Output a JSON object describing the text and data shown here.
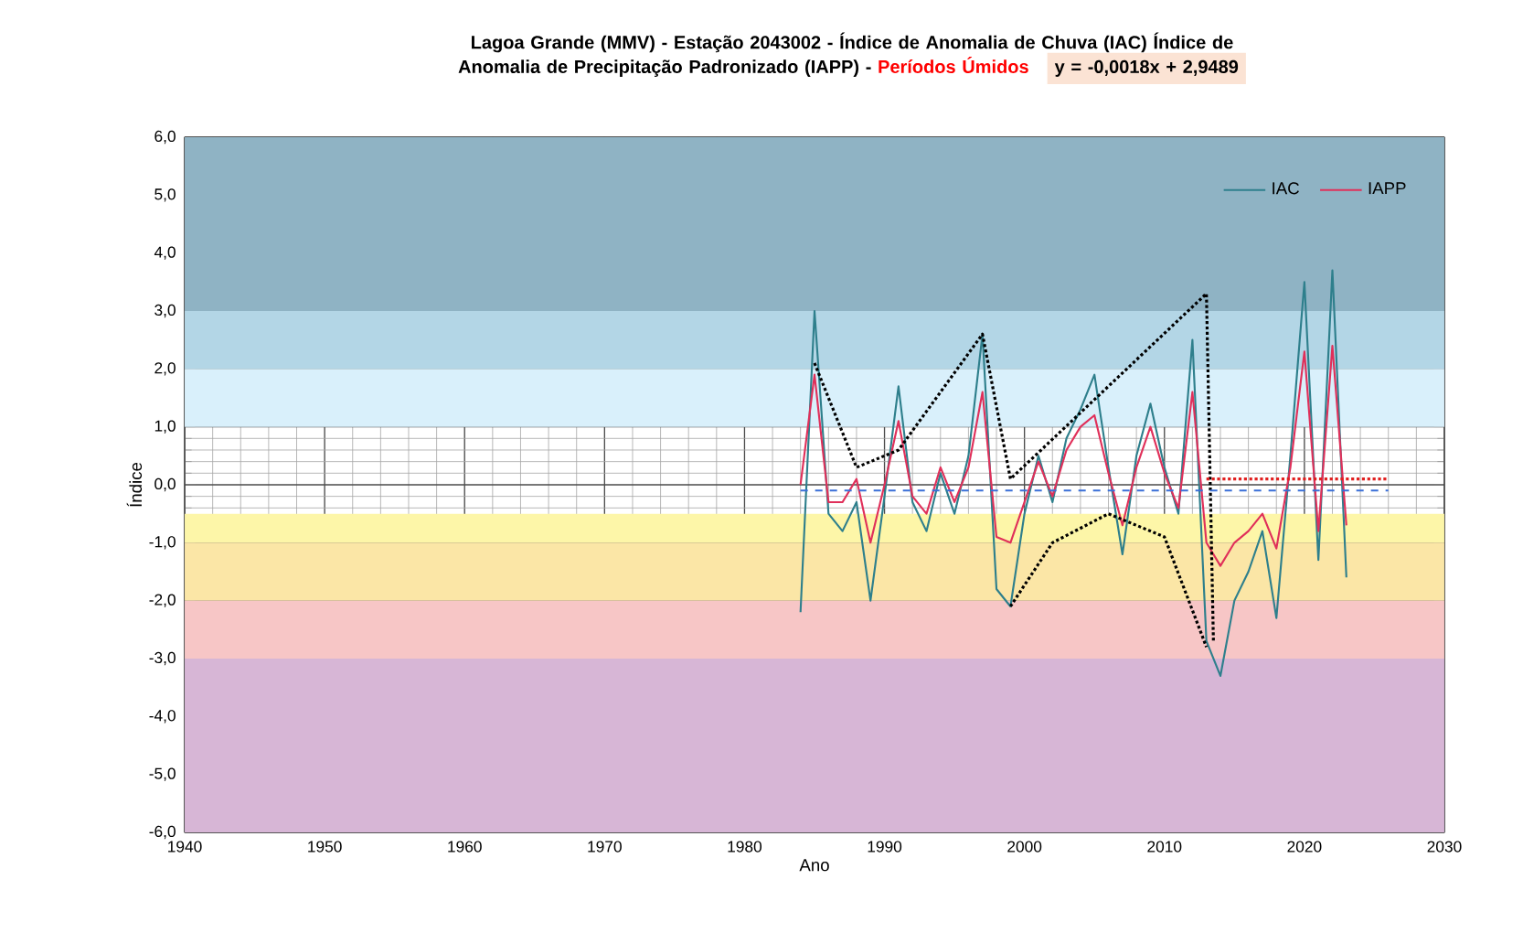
{
  "chart_data": {
    "type": "line",
    "title": "Lagoa Grande (MMV) - Estação 2043002 - Índice de Anomalia de Chuva (IAC) Índice de Anomalia de Precipitação Padronizado (IAPP) -",
    "subtitle": "Períodos Úmidos",
    "annotations": [
      "y = -0,0018x + 2,9489"
    ],
    "xlabel": "Ano",
    "ylabel": "Índice",
    "xlim": [
      1940,
      2030
    ],
    "xticks": [
      1940,
      1950,
      1960,
      1970,
      1980,
      1990,
      2000,
      2010,
      2020,
      2030
    ],
    "ylim": [
      -6,
      6
    ],
    "yticks": [
      {
        "value": -6,
        "label": "-6,0"
      },
      {
        "value": -5,
        "label": "-5,0"
      },
      {
        "value": -4,
        "label": "-4,0"
      },
      {
        "value": -3,
        "label": "-3,0"
      },
      {
        "value": -2,
        "label": "-2,0"
      },
      {
        "value": -1,
        "label": "-1,0"
      },
      {
        "value": 0,
        "label": "0,0"
      },
      {
        "value": 1,
        "label": "1,0"
      },
      {
        "value": 2,
        "label": "2,0"
      },
      {
        "value": 3,
        "label": "3,0"
      },
      {
        "value": 4,
        "label": "4,0"
      },
      {
        "value": 5,
        "label": "5,0"
      },
      {
        "value": 6,
        "label": "6,0"
      }
    ],
    "grid": true,
    "legend": "top right",
    "marker": "none",
    "bands": [
      {
        "axis": "y",
        "from": 3,
        "to": 6,
        "color": "#8fb3c4"
      },
      {
        "axis": "y",
        "from": 2,
        "to": 3,
        "color": "#b3d6e6"
      },
      {
        "axis": "y",
        "from": 1,
        "to": 2,
        "color": "#d9f0fb"
      },
      {
        "axis": "y",
        "from": -1,
        "to": -0.5,
        "color": "#fdf6a8"
      },
      {
        "axis": "y",
        "from": -2,
        "to": -1,
        "color": "#fbe6a6"
      },
      {
        "axis": "y",
        "from": -3,
        "to": -2,
        "color": "#f7c6c6"
      },
      {
        "axis": "y",
        "from": -6,
        "to": -3,
        "color": "#d7b6d6"
      }
    ],
    "series": [
      {
        "name": "IAC",
        "color": "#2e7f8c",
        "x": [
          1984,
          1985,
          1986,
          1987,
          1988,
          1989,
          1990,
          1991,
          1992,
          1993,
          1994,
          1995,
          1996,
          1997,
          1998,
          1999,
          2000,
          2001,
          2002,
          2003,
          2004,
          2005,
          2006,
          2007,
          2008,
          2009,
          2010,
          2011,
          2012,
          2013,
          2014,
          2015,
          2016,
          2017,
          2018,
          2019,
          2020,
          2021,
          2022,
          2023
        ],
        "values": [
          -2.2,
          3.0,
          -0.5,
          -0.8,
          -0.3,
          -2.0,
          -0.2,
          1.7,
          -0.3,
          -0.8,
          0.2,
          -0.5,
          0.5,
          2.6,
          -1.8,
          -2.1,
          -0.5,
          0.5,
          -0.3,
          0.8,
          1.3,
          1.9,
          0.3,
          -1.2,
          0.5,
          1.4,
          0.3,
          -0.5,
          2.5,
          -2.7,
          -3.3,
          -2.0,
          -1.5,
          -0.8,
          -2.3,
          0.5,
          3.5,
          -1.3,
          3.7,
          -1.6
        ]
      },
      {
        "name": "IAPP",
        "color": "#e0305a",
        "x": [
          1984,
          1985,
          1986,
          1987,
          1988,
          1989,
          1990,
          1991,
          1992,
          1993,
          1994,
          1995,
          1996,
          1997,
          1998,
          1999,
          2000,
          2001,
          2002,
          2003,
          2004,
          2005,
          2006,
          2007,
          2008,
          2009,
          2010,
          2011,
          2012,
          2013,
          2014,
          2015,
          2016,
          2017,
          2018,
          2019,
          2020,
          2021,
          2022,
          2023
        ],
        "values": [
          0.0,
          1.9,
          -0.3,
          -0.3,
          0.1,
          -1.0,
          0.0,
          1.1,
          -0.2,
          -0.5,
          0.3,
          -0.3,
          0.3,
          1.6,
          -0.9,
          -1.0,
          -0.3,
          0.4,
          -0.2,
          0.6,
          1.0,
          1.2,
          0.2,
          -0.7,
          0.3,
          1.0,
          0.2,
          -0.4,
          1.6,
          -1.0,
          -1.4,
          -1.0,
          -0.8,
          -0.5,
          -1.1,
          0.3,
          2.3,
          -0.8,
          2.4,
          -0.7
        ]
      },
      {
        "color": "#000000",
        "line_style": "dotted",
        "x": [
          1985,
          1988,
          1991,
          1997,
          1999,
          2013,
          2013.5
        ],
        "values": [
          2.1,
          0.3,
          0.6,
          2.6,
          0.1,
          3.3,
          -2.7
        ]
      },
      {
        "color": "#000000",
        "line_style": "dotted",
        "x": [
          1999,
          2002,
          2006,
          2010,
          2013
        ],
        "values": [
          -2.1,
          -1.0,
          -0.5,
          -0.9,
          -2.8
        ]
      },
      {
        "color": "#3a6fd8",
        "line_style": "dashed",
        "x": [
          1984,
          2026
        ],
        "values": [
          -0.1,
          -0.1
        ]
      },
      {
        "color": "#e02020",
        "line_style": "dotted",
        "x": [
          2013,
          2026
        ],
        "values": [
          0.1,
          0.1
        ]
      }
    ]
  }
}
